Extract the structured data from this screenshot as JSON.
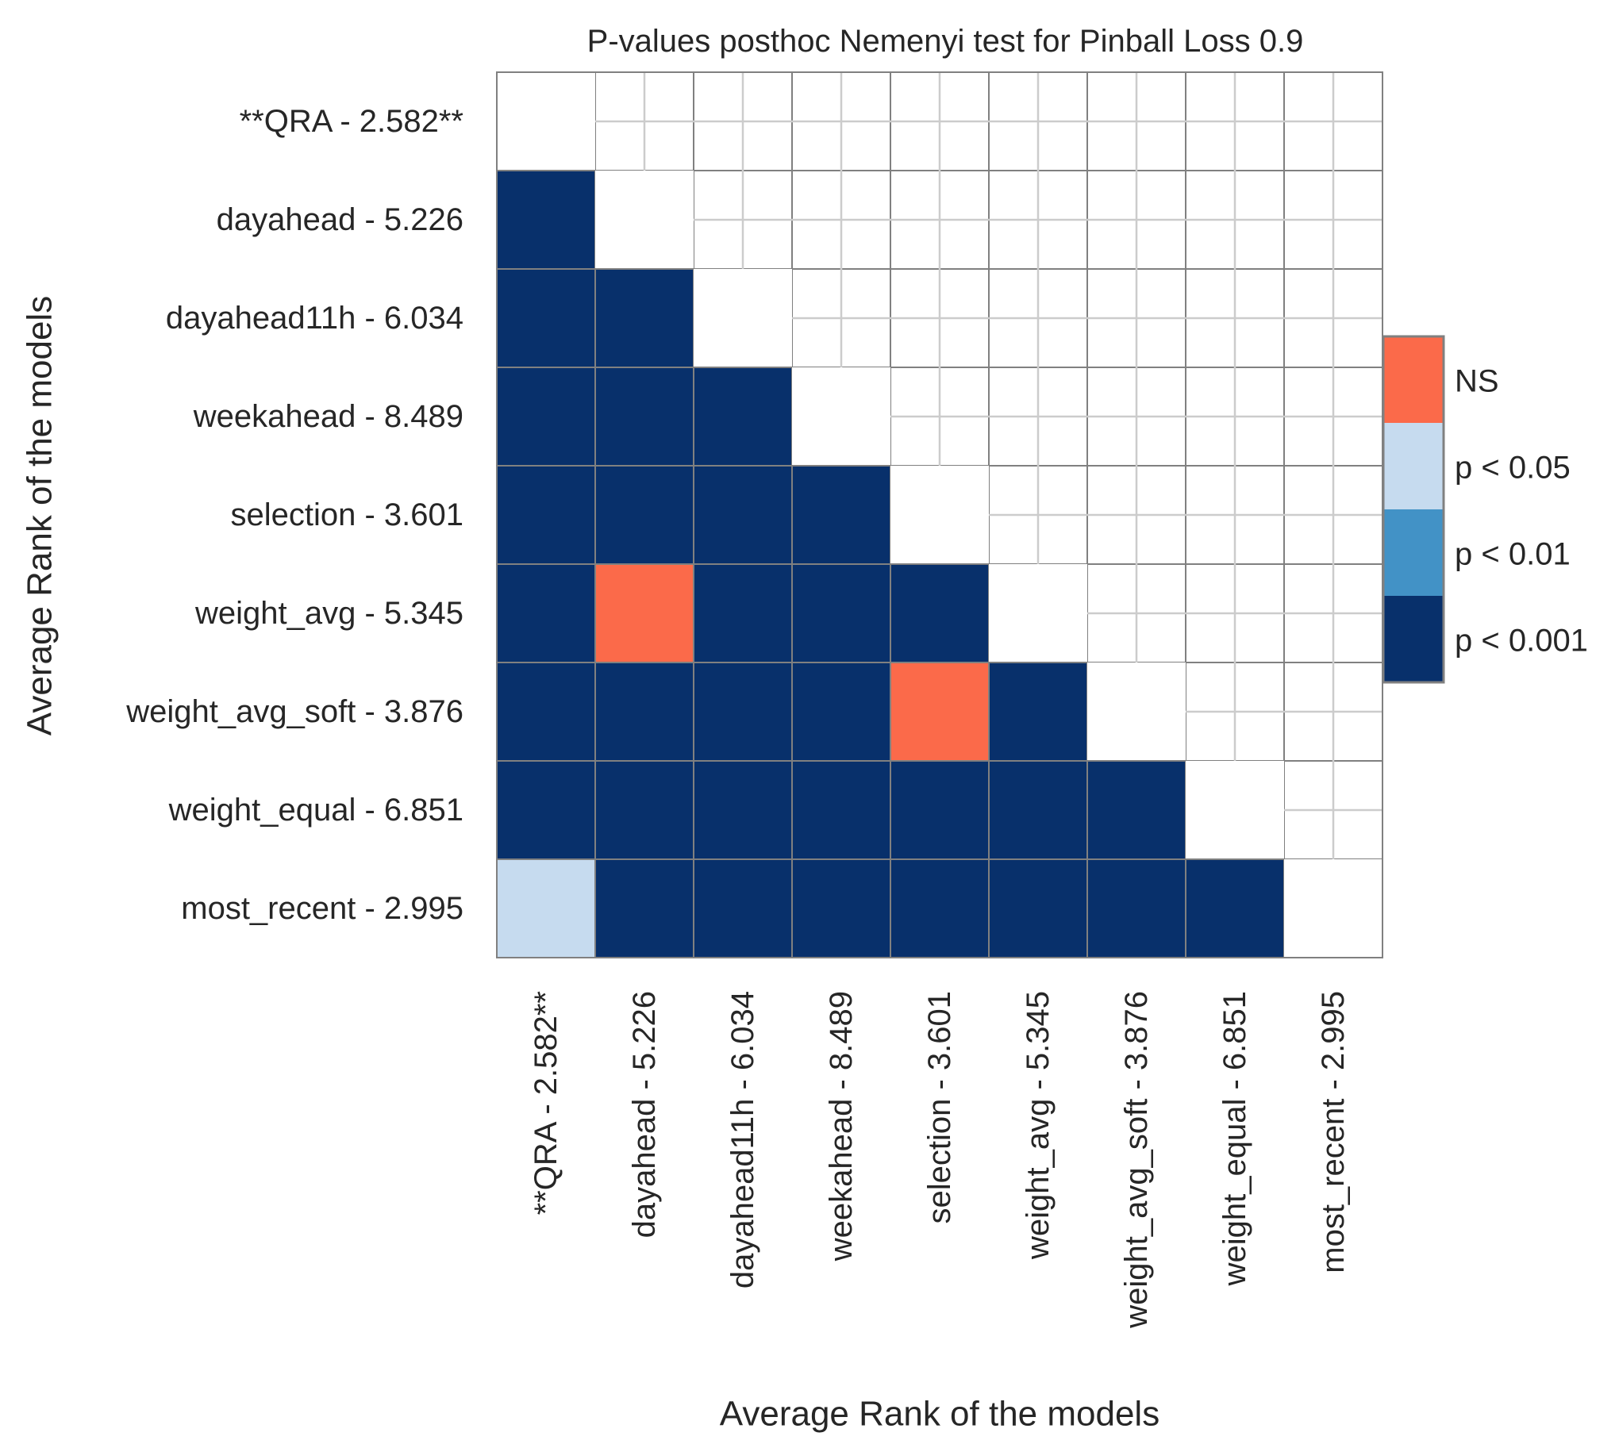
{
  "chart_data": {
    "type": "heatmap",
    "title": "P-values posthoc Nemenyi test for Pinball Loss 0.9",
    "xlabel": "Average Rank of the models",
    "ylabel": "Average Rank of the models",
    "row_labels": [
      "**QRA - 2.582**",
      "dayahead - 5.226",
      "dayahead11h - 6.034",
      "weekahead - 8.489",
      "selection - 3.601",
      "weight_avg - 5.345",
      "weight_avg_soft - 3.876",
      "weight_equal - 6.851",
      "most_recent - 2.995"
    ],
    "col_labels": [
      "**QRA - 2.582**",
      "dayahead - 5.226",
      "dayahead11h - 6.034",
      "weekahead - 8.489",
      "selection - 3.601",
      "weight_avg - 5.345",
      "weight_avg_soft - 3.876",
      "weight_equal - 6.851",
      "most_recent - 2.995"
    ],
    "mask": "upper triangle and diagonal hidden",
    "lower_triangle": [
      [],
      [
        3
      ],
      [
        3,
        3
      ],
      [
        3,
        3,
        3
      ],
      [
        3,
        3,
        3,
        3
      ],
      [
        3,
        0,
        3,
        3,
        3
      ],
      [
        3,
        3,
        3,
        3,
        0,
        3
      ],
      [
        3,
        3,
        3,
        3,
        3,
        3,
        3
      ],
      [
        1,
        3,
        3,
        3,
        3,
        3,
        3,
        3
      ]
    ],
    "legend": {
      "placement": "right",
      "entries": [
        {
          "label": "NS",
          "color": "#fb6a4a"
        },
        {
          "label": "p < 0.05",
          "color": "#c6dbef"
        },
        {
          "label": "p < 0.01",
          "color": "#4292c6"
        },
        {
          "label": "p < 0.001",
          "color": "#08306b"
        }
      ]
    },
    "grid": true
  }
}
